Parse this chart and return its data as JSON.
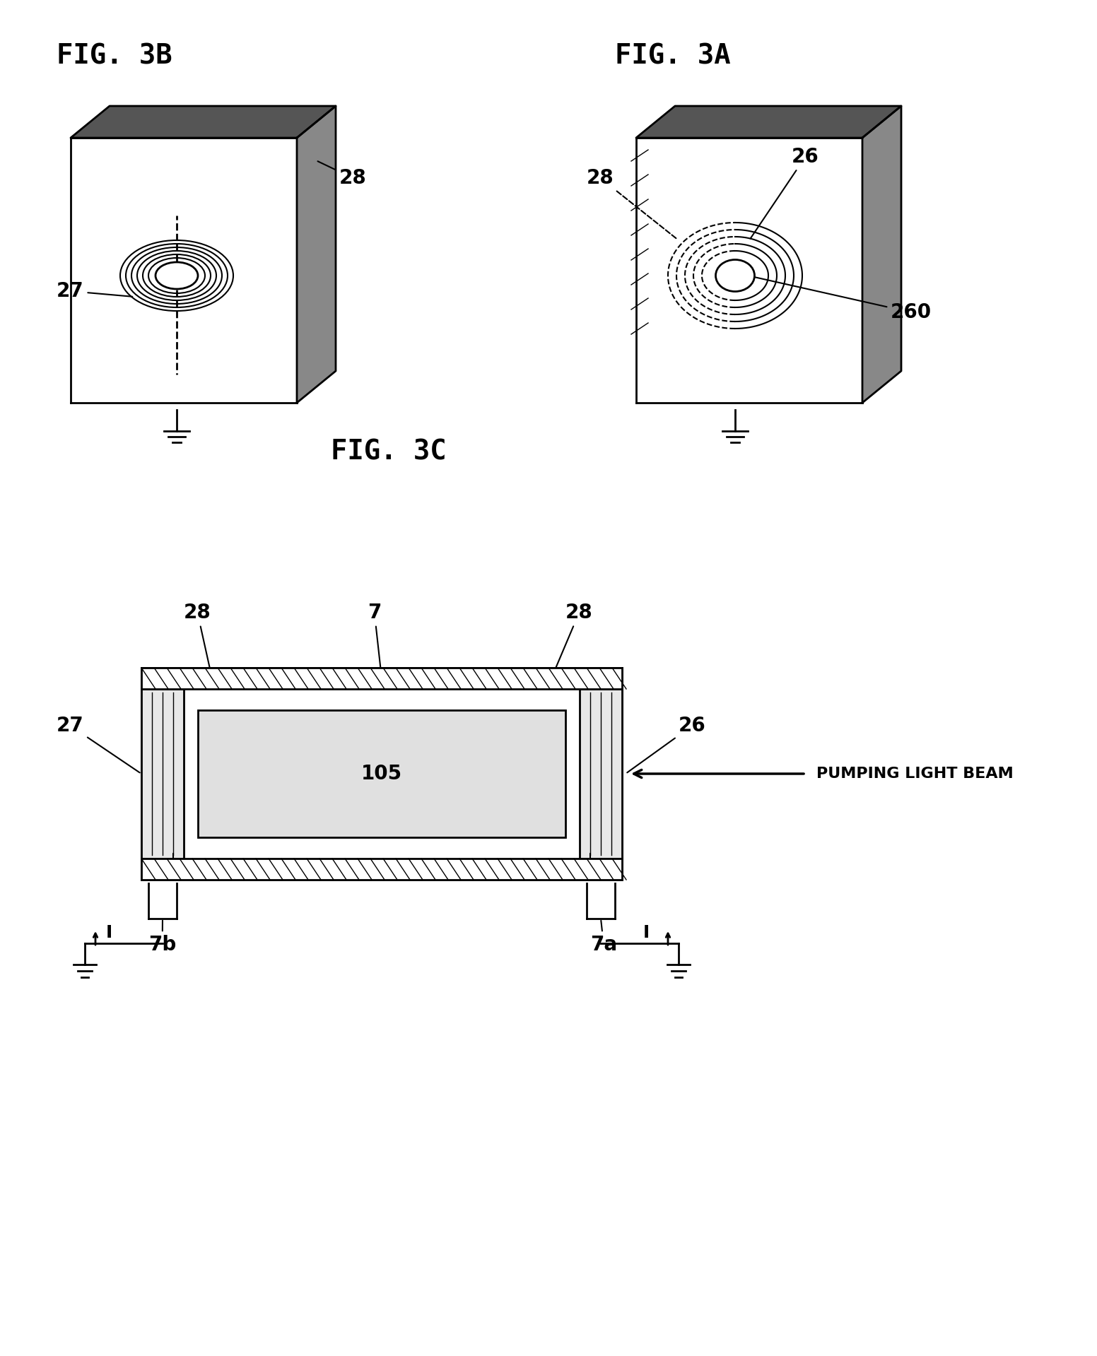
{
  "bg_color": "#ffffff",
  "line_color": "#000000",
  "fig_width": 15.52,
  "fig_height": 19.19,
  "fig3b_title": "FIG. 3B",
  "fig3a_title": "FIG. 3A",
  "fig3c_title": "FIG. 3C",
  "labels": {
    "27_3b": "27",
    "28_3b": "28",
    "26_3a": "26",
    "28_3a": "28",
    "260_3a": "260",
    "27_3c": "27",
    "28_3c_left": "28",
    "7_3c": "7",
    "28_3c_right": "28",
    "26_3c": "26",
    "105_3c": "105",
    "7b_3c": "7b",
    "7a_3c": "7a",
    "I_left": "I",
    "I_right": "I",
    "pumping": "PUMPING LIGHT BEAM"
  }
}
